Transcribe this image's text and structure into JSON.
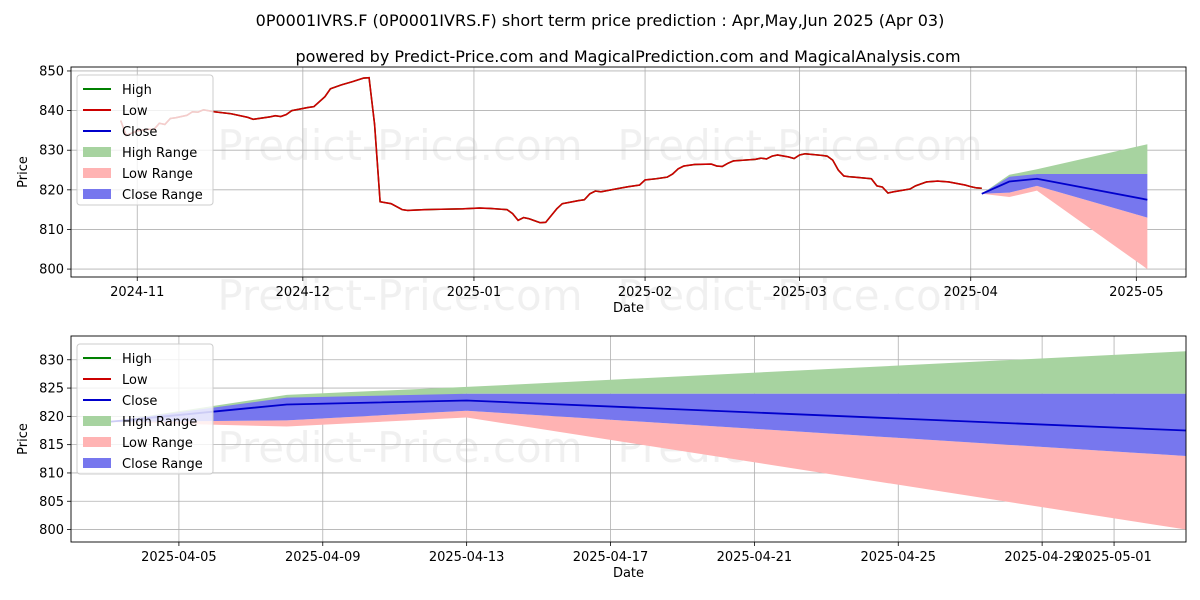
{
  "title": "0P0001IVRS.F (0P0001IVRS.F) short term price prediction : Apr,May,Jun 2025 (Apr 03)",
  "subtitle": "powered by Predict-Price.com and MagicalPrediction.com and MagicalAnalysis.com",
  "watermark": "Predict-Price.com",
  "colors": {
    "high": "#008000",
    "low": "#cc0000",
    "close": "#0000cc",
    "high_range": "#a7d3a0",
    "low_range": "#ffb3b3",
    "close_range": "#7777ee"
  },
  "chart_data": [
    {
      "type": "line",
      "xlabel": "Date",
      "ylabel": "Price",
      "xlim": [
        "2024-10-20",
        "2025-05-10"
      ],
      "ylim": [
        798,
        851
      ],
      "grid": true,
      "legend": {
        "placement": "top-left",
        "entries": [
          "High",
          "Low",
          "Close",
          "High Range",
          "Low Range",
          "Close Range"
        ]
      },
      "x_ticks": [
        {
          "date": "2024-11-01",
          "label": "2024-11"
        },
        {
          "date": "2024-12-01",
          "label": "2024-12"
        },
        {
          "date": "2025-01-01",
          "label": "2025-01"
        },
        {
          "date": "2025-02-01",
          "label": "2025-02"
        },
        {
          "date": "2025-03-01",
          "label": "2025-03"
        },
        {
          "date": "2025-04-01",
          "label": "2025-04"
        },
        {
          "date": "2025-05-01",
          "label": "2025-05"
        }
      ],
      "y_ticks": [
        800,
        810,
        820,
        830,
        840,
        850
      ],
      "history": [
        [
          "2024-10-29",
          837.5
        ],
        [
          "2024-10-30",
          833.7
        ],
        [
          "2024-10-31",
          834.3
        ],
        [
          "2024-11-01",
          834.9
        ],
        [
          "2024-11-03",
          835.3
        ],
        [
          "2024-11-04",
          835.2
        ],
        [
          "2024-11-05",
          836.8
        ],
        [
          "2024-11-06",
          836.5
        ],
        [
          "2024-11-07",
          838.0
        ],
        [
          "2024-11-08",
          838.2
        ],
        [
          "2024-11-10",
          838.8
        ],
        [
          "2024-11-11",
          839.7
        ],
        [
          "2024-11-12",
          839.6
        ],
        [
          "2024-11-13",
          840.2
        ],
        [
          "2024-11-15",
          839.7
        ],
        [
          "2024-11-18",
          839.2
        ],
        [
          "2024-11-21",
          838.3
        ],
        [
          "2024-11-22",
          837.8
        ],
        [
          "2024-11-25",
          838.4
        ],
        [
          "2024-11-26",
          838.7
        ],
        [
          "2024-11-27",
          838.5
        ],
        [
          "2024-11-28",
          839.0
        ],
        [
          "2024-11-29",
          840.0
        ],
        [
          "2024-12-02",
          840.8
        ],
        [
          "2024-12-03",
          841.0
        ],
        [
          "2024-12-05",
          843.5
        ],
        [
          "2024-12-06",
          845.5
        ],
        [
          "2024-12-08",
          846.5
        ],
        [
          "2024-12-10",
          847.3
        ],
        [
          "2024-12-12",
          848.2
        ],
        [
          "2024-12-13",
          848.3
        ],
        [
          "2024-12-14",
          836.5
        ],
        [
          "2024-12-15",
          817.0
        ],
        [
          "2024-12-17",
          816.5
        ],
        [
          "2024-12-19",
          815.0
        ],
        [
          "2024-12-20",
          814.8
        ],
        [
          "2024-12-23",
          815.0
        ],
        [
          "2024-12-26",
          815.1
        ],
        [
          "2024-12-30",
          815.2
        ],
        [
          "2025-01-02",
          815.4
        ],
        [
          "2025-01-04",
          815.3
        ],
        [
          "2025-01-06",
          815.1
        ],
        [
          "2025-01-07",
          815.0
        ],
        [
          "2025-01-08",
          814.0
        ],
        [
          "2025-01-09",
          812.3
        ],
        [
          "2025-01-10",
          813.0
        ],
        [
          "2025-01-11",
          812.7
        ],
        [
          "2025-01-12",
          812.2
        ],
        [
          "2025-01-13",
          811.7
        ],
        [
          "2025-01-14",
          811.8
        ],
        [
          "2025-01-15",
          813.5
        ],
        [
          "2025-01-16",
          815.2
        ],
        [
          "2025-01-17",
          816.5
        ],
        [
          "2025-01-20",
          817.3
        ],
        [
          "2025-01-21",
          817.5
        ],
        [
          "2025-01-22",
          819.0
        ],
        [
          "2025-01-23",
          819.7
        ],
        [
          "2025-01-24",
          819.5
        ],
        [
          "2025-01-27",
          820.3
        ],
        [
          "2025-01-29",
          820.8
        ],
        [
          "2025-01-31",
          821.2
        ],
        [
          "2025-02-01",
          822.5
        ],
        [
          "2025-02-03",
          822.8
        ],
        [
          "2025-02-05",
          823.2
        ],
        [
          "2025-02-06",
          824.0
        ],
        [
          "2025-02-07",
          825.3
        ],
        [
          "2025-02-08",
          826.0
        ],
        [
          "2025-02-10",
          826.4
        ],
        [
          "2025-02-13",
          826.5
        ],
        [
          "2025-02-14",
          826.0
        ],
        [
          "2025-02-15",
          825.9
        ],
        [
          "2025-02-16",
          826.7
        ],
        [
          "2025-02-17",
          827.3
        ],
        [
          "2025-02-19",
          827.5
        ],
        [
          "2025-02-21",
          827.7
        ],
        [
          "2025-02-22",
          828.0
        ],
        [
          "2025-02-23",
          827.8
        ],
        [
          "2025-02-24",
          828.5
        ],
        [
          "2025-02-25",
          828.8
        ],
        [
          "2025-02-27",
          828.3
        ],
        [
          "2025-02-28",
          827.9
        ],
        [
          "2025-03-01",
          828.8
        ],
        [
          "2025-03-02",
          829.1
        ],
        [
          "2025-03-05",
          828.7
        ],
        [
          "2025-03-06",
          828.5
        ],
        [
          "2025-03-07",
          827.5
        ],
        [
          "2025-03-08",
          825.0
        ],
        [
          "2025-03-09",
          823.5
        ],
        [
          "2025-03-10",
          823.3
        ],
        [
          "2025-03-11",
          823.2
        ],
        [
          "2025-03-14",
          822.8
        ],
        [
          "2025-03-15",
          821.0
        ],
        [
          "2025-03-16",
          820.7
        ],
        [
          "2025-03-17",
          819.2
        ],
        [
          "2025-03-18",
          819.5
        ],
        [
          "2025-03-21",
          820.2
        ],
        [
          "2025-03-22",
          821.0
        ],
        [
          "2025-03-23",
          821.5
        ],
        [
          "2025-03-24",
          822.0
        ],
        [
          "2025-03-26",
          822.2
        ],
        [
          "2025-03-28",
          822.0
        ],
        [
          "2025-03-31",
          821.2
        ],
        [
          "2025-04-01",
          820.8
        ],
        [
          "2025-04-02",
          820.5
        ],
        [
          "2025-04-03",
          820.4
        ]
      ],
      "forecast": {
        "dates": [
          "2025-04-03",
          "2025-04-08",
          "2025-04-13",
          "2025-05-03"
        ],
        "high_range": {
          "lower": [
            819.0,
            822.5,
            824.0,
            824.0
          ],
          "upper": [
            819.0,
            823.8,
            825.2,
            831.5
          ]
        },
        "low_range": {
          "lower": [
            819.0,
            818.2,
            819.8,
            800.0
          ],
          "upper": [
            819.0,
            819.3,
            821.0,
            813.0
          ]
        },
        "close_range": {
          "lower": [
            819.0,
            819.3,
            821.0,
            813.0
          ],
          "upper": [
            819.0,
            823.3,
            824.0,
            824.0
          ]
        },
        "close": [
          819.0,
          822.1,
          822.8,
          817.5
        ]
      }
    },
    {
      "type": "area",
      "xlabel": "Date",
      "ylabel": "Price",
      "xlim": [
        "2025-04-02",
        "2025-05-03"
      ],
      "ylim": [
        797.8,
        834.2
      ],
      "grid": true,
      "legend": {
        "placement": "top-left",
        "entries": [
          "High",
          "Low",
          "Close",
          "High Range",
          "Low Range",
          "Close Range"
        ]
      },
      "x_ticks": [
        {
          "date": "2025-04-05",
          "label": "2025-04-05"
        },
        {
          "date": "2025-04-09",
          "label": "2025-04-09"
        },
        {
          "date": "2025-04-13",
          "label": "2025-04-13"
        },
        {
          "date": "2025-04-17",
          "label": "2025-04-17"
        },
        {
          "date": "2025-04-21",
          "label": "2025-04-21"
        },
        {
          "date": "2025-04-25",
          "label": "2025-04-25"
        },
        {
          "date": "2025-04-29",
          "label": "2025-04-29"
        },
        {
          "date": "2025-05-01",
          "label": "2025-05-01"
        }
      ],
      "y_ticks": [
        800,
        805,
        810,
        815,
        820,
        825,
        830
      ],
      "forecast": {
        "dates": [
          "2025-04-03",
          "2025-04-08",
          "2025-04-13",
          "2025-05-03"
        ],
        "high_range": {
          "lower": [
            819.0,
            822.5,
            824.0,
            824.0
          ],
          "upper": [
            819.0,
            823.8,
            825.2,
            831.5
          ]
        },
        "low_range": {
          "lower": [
            819.0,
            818.2,
            819.8,
            800.0
          ],
          "upper": [
            819.0,
            819.3,
            821.0,
            813.0
          ]
        },
        "close_range": {
          "lower": [
            819.0,
            819.3,
            821.0,
            813.0
          ],
          "upper": [
            819.0,
            823.3,
            824.0,
            824.0
          ]
        },
        "close": [
          819.0,
          822.1,
          822.8,
          817.5
        ]
      }
    }
  ]
}
